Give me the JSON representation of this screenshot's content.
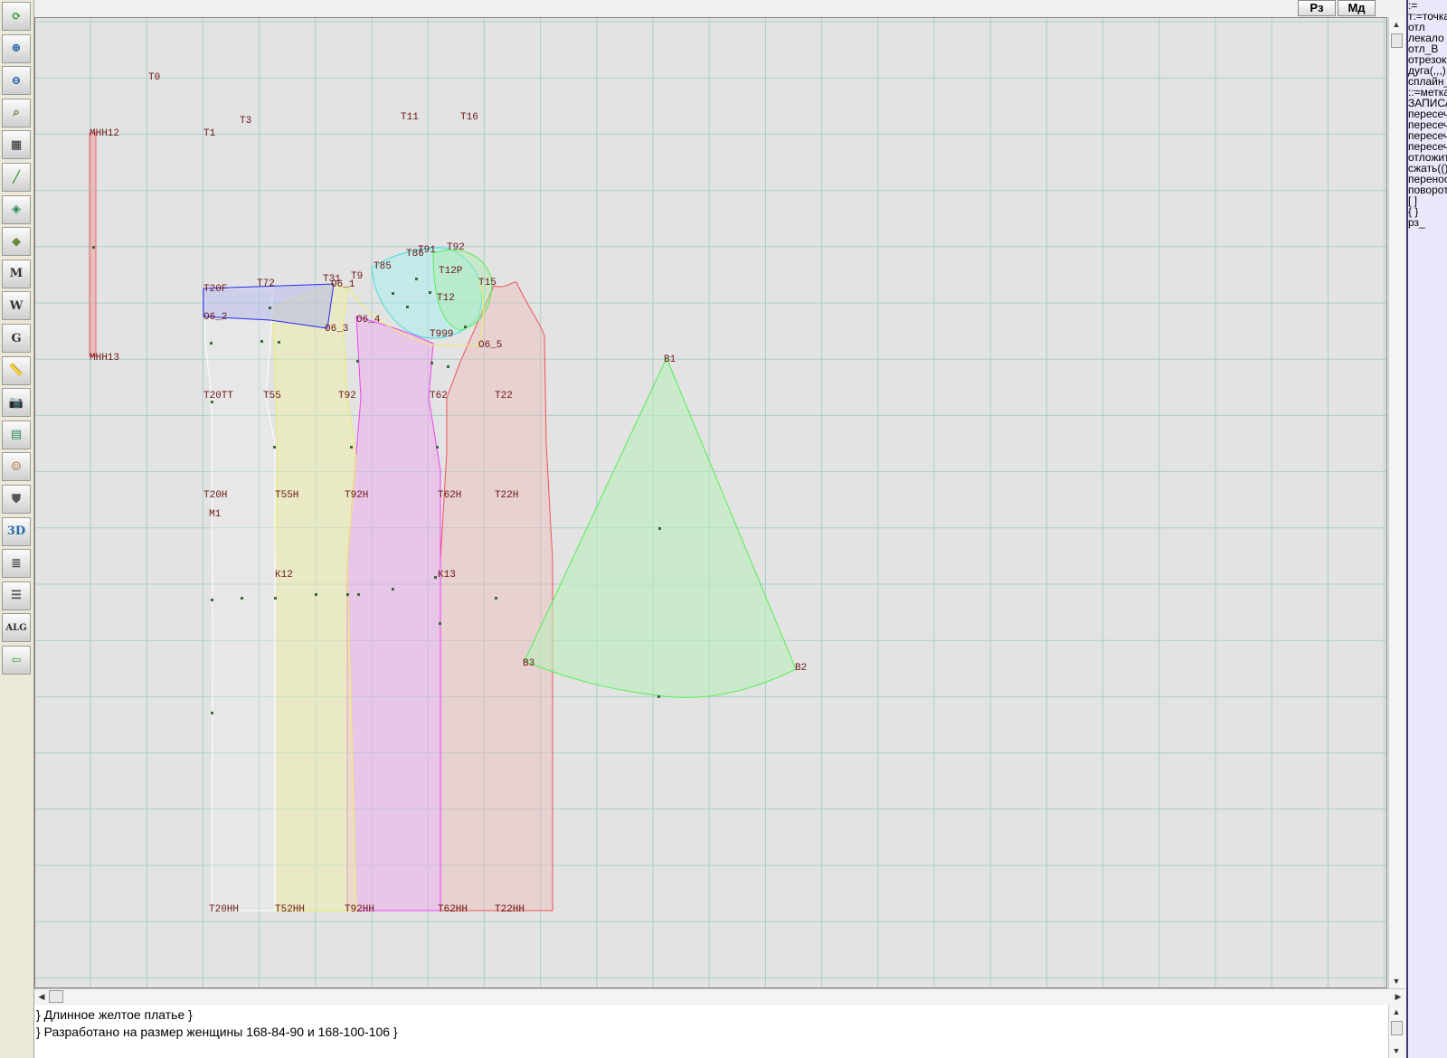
{
  "toolbar": {
    "tools": [
      {
        "icon": "refresh-icon",
        "glyph": "⟳",
        "color": "#2a9a2a"
      },
      {
        "icon": "zoom-in-icon",
        "glyph": "⊕",
        "color": "#2a6aaa"
      },
      {
        "icon": "zoom-out-icon",
        "glyph": "⊖",
        "color": "#2a6aaa"
      },
      {
        "icon": "map-zoom-icon",
        "glyph": "⌕",
        "color": "#7a6a3a"
      },
      {
        "icon": "grid-icon",
        "glyph": "▦",
        "color": "#222222"
      },
      {
        "icon": "line-tool-icon",
        "glyph": "╱",
        "color": "#1a8a1a"
      },
      {
        "icon": "map-layer-icon",
        "glyph": "◈",
        "color": "#2a8a5a"
      },
      {
        "icon": "map-edit-icon",
        "glyph": "◆",
        "color": "#6a8a3a"
      },
      {
        "icon": "map-m-icon",
        "glyph": "M",
        "color": "#333333"
      },
      {
        "icon": "compass-w-icon",
        "glyph": "W",
        "color": "#333333"
      },
      {
        "icon": "curve-g-icon",
        "glyph": "G",
        "color": "#333333"
      },
      {
        "icon": "ruler-icon",
        "glyph": "📏",
        "color": "#2a6aaa"
      },
      {
        "icon": "camera-icon",
        "glyph": "📷",
        "color": "#333333"
      },
      {
        "icon": "document-icon",
        "glyph": "▤",
        "color": "#2a8a5a"
      },
      {
        "icon": "model-face-icon",
        "glyph": "☺",
        "color": "#aa6a3a"
      },
      {
        "icon": "jacket-icon",
        "glyph": "⛊",
        "color": "#555555"
      },
      {
        "icon": "3d-view-icon",
        "glyph": "3D",
        "color": "#2a6aaa"
      },
      {
        "icon": "text-list-icon",
        "glyph": "≣",
        "color": "#555555"
      },
      {
        "icon": "stack-icon",
        "glyph": "☰",
        "color": "#555555"
      },
      {
        "icon": "algorithm-icon",
        "glyph": "ALG",
        "color": "#333333"
      },
      {
        "icon": "exit-arrow-icon",
        "glyph": "⇦",
        "color": "#2a9a2a"
      }
    ]
  },
  "topbar": {
    "rz_label": "Рз",
    "md_label": "Мд"
  },
  "canvas": {
    "grid_color": "#a9cfc9",
    "pieces": [
      {
        "name": "shoulder-blue",
        "color": "#2a2aee",
        "fill": "#aab0ee",
        "opacity": 0.45
      },
      {
        "name": "sleeve-white",
        "color": "#ffffff",
        "fill": "#eeeeee",
        "opacity": 0.35
      },
      {
        "name": "yellow-panel",
        "color": "#eeee66",
        "fill": "#f0f0aa",
        "opacity": 0.5
      },
      {
        "name": "magenta-panel",
        "color": "#ee44ee",
        "fill": "#eeaaee",
        "opacity": 0.5
      },
      {
        "name": "red-panel",
        "color": "#ee5555",
        "fill": "#eebbbb",
        "opacity": 0.45
      },
      {
        "name": "cyan-collar",
        "color": "#44dddd",
        "fill": "#aaeeee",
        "opacity": 0.55
      },
      {
        "name": "green-collar",
        "color": "#55ee55",
        "fill": "#aaeeaa",
        "opacity": 0.45
      },
      {
        "name": "green-sector",
        "color": "#55ee55",
        "fill": "#bbeebb",
        "opacity": 0.6
      },
      {
        "name": "red-rule",
        "color": "#ee6666",
        "fill": "#ee9999",
        "opacity": 0.5
      }
    ],
    "labels": {
      "T0": "Т0",
      "T1": "Т1",
      "T3": "Т3",
      "T11": "Т11",
      "T16": "Т16",
      "MHHI2": "МНН12",
      "MHHI3": "МНН13",
      "T91": "Т91",
      "T92": "Т92",
      "T85": "Т85",
      "T86": "Т86",
      "T12P": "Т12Р",
      "T12": "Т12",
      "T9": "Т9",
      "T20F": "Т20F",
      "T72": "Т72",
      "T31": "Т31",
      "O6_1": "О6_1",
      "T15": "Т15",
      "O6_2": "О6_2",
      "O6_4": "О6_4",
      "O6_3": "О6_3",
      "T999": "Т999",
      "O6_5": "О6_5",
      "B1": "В1",
      "B2": "В2",
      "B3": "В3",
      "T20TT": "Т20ТТ",
      "T55": "Т55",
      "T92b": "Т92",
      "T62": "Т62",
      "T22": "Т22",
      "T20H": "Т20Н",
      "M1": "М1",
      "T55H": "Т55Н",
      "T92H": "Т92Н",
      "T62H": "Т62Н",
      "T22H": "Т22Н",
      "K12": "К12",
      "K13": "К13",
      "T20HH": "Т20НН",
      "T52HH": "Т52НН",
      "T92HH": "Т92НН",
      "T62HH": "Т62НН",
      "T22HH": "Т22НН"
    }
  },
  "comments": {
    "line1": "} Длинное желтое платье }",
    "line2": "} Разработано на размер женщины 168-84-90 и 168-100-106 }"
  },
  "side_panel": {
    "commands": [
      ":=",
      "т:=точка",
      "отл",
      "лекало",
      "отл_В",
      "отрезок",
      "дуга(,,,)",
      "сплайн_",
      "::=метка",
      "ЗАПИСАТЬ",
      "пересеч",
      "пересеч",
      "пересеч",
      "пересеч",
      "отложит",
      "сжать(()",
      "перенос",
      "поворот",
      "[ ]",
      "{ }",
      "рз_"
    ]
  }
}
